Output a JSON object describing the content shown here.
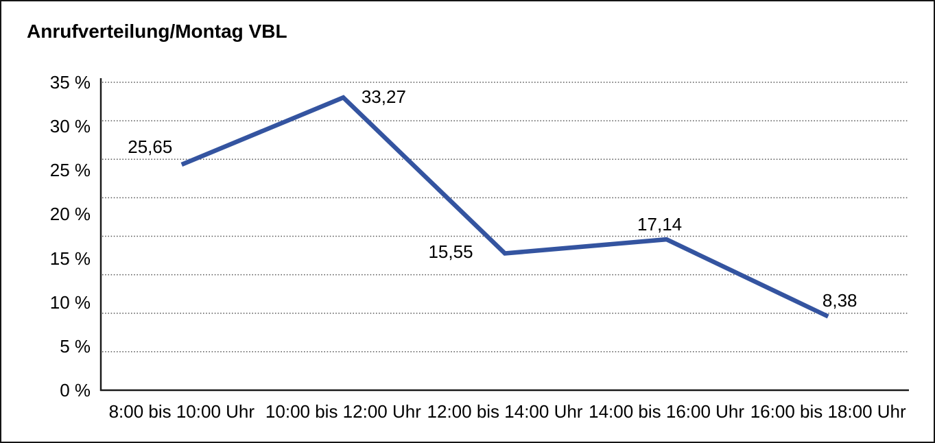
{
  "chart_data": {
    "type": "line",
    "title": "Anrufverteilung/Montag VBL",
    "categories": [
      "8:00 bis 10:00 Uhr",
      "10:00 bis 12:00 Uhr",
      "12:00 bis 14:00 Uhr",
      "14:00 bis 16:00 Uhr",
      "16:00 bis 18:00 Uhr"
    ],
    "values": [
      25.65,
      33.27,
      15.55,
      17.14,
      8.38
    ],
    "value_labels": [
      "25,65",
      "33,27",
      "15,55",
      "17,14",
      "8,38"
    ],
    "y_tick_labels": [
      "35 %",
      "30 %",
      "25 %",
      "20 %",
      "15 %",
      "10 %",
      "5 %",
      "0 %"
    ],
    "ylim": [
      0,
      35
    ],
    "xlabel": "",
    "ylabel": "",
    "legend": "none",
    "grid": "horizontal-dotted",
    "colors": {
      "line": "#3454A0",
      "axis": "#1a1a1a",
      "gridline": "#5a5a5a",
      "text": "#000000",
      "background": "#ffffff"
    }
  }
}
